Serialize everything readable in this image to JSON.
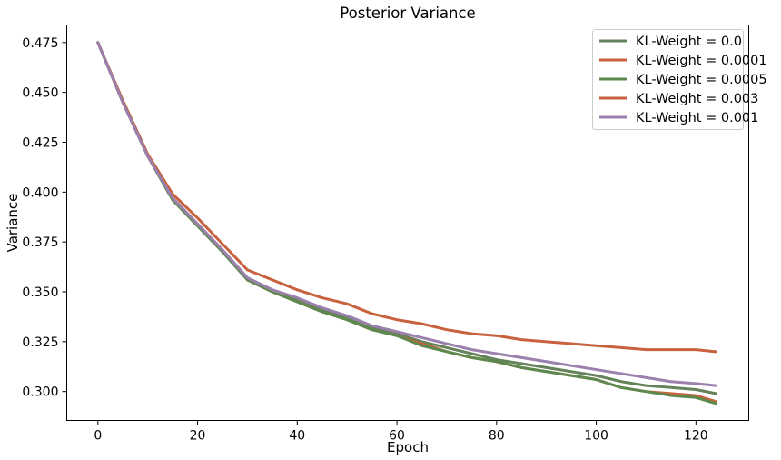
{
  "chart_data": {
    "type": "line",
    "title": "Posterior Variance",
    "xlabel": "Epoch",
    "ylabel": "Variance",
    "xlim": [
      -6.25,
      130.6
    ],
    "ylim": [
      0.2855,
      0.4838
    ],
    "xticks": [
      0,
      20,
      40,
      60,
      80,
      100,
      120
    ],
    "xtick_labels": [
      "0",
      "20",
      "40",
      "60",
      "80",
      "100",
      "120"
    ],
    "yticks": [
      0.3,
      0.325,
      0.35,
      0.375,
      0.4,
      0.425,
      0.45,
      0.475
    ],
    "ytick_labels": [
      "0.300",
      "0.325",
      "0.350",
      "0.375",
      "0.400",
      "0.425",
      "0.450",
      "0.475"
    ],
    "grid": false,
    "legend_position": "top-right",
    "x": [
      0,
      5,
      10,
      15,
      20,
      25,
      30,
      35,
      40,
      45,
      50,
      55,
      60,
      65,
      70,
      75,
      80,
      85,
      90,
      95,
      100,
      105,
      110,
      115,
      120,
      124
    ],
    "series": [
      {
        "name": "KL-Weight = 0.0",
        "color": "#65835b",
        "values": [
          0.475,
          0.445,
          0.418,
          0.397,
          0.384,
          0.371,
          0.357,
          0.351,
          0.346,
          0.341,
          0.337,
          0.332,
          0.329,
          0.325,
          0.322,
          0.319,
          0.316,
          0.314,
          0.312,
          0.31,
          0.308,
          0.305,
          0.303,
          0.302,
          0.301,
          0.299
        ]
      },
      {
        "name": "KL-Weight = 0.0001",
        "color": "#c8613e",
        "values": [
          0.475,
          0.445,
          0.418,
          0.397,
          0.384,
          0.371,
          0.356,
          0.35,
          0.345,
          0.34,
          0.336,
          0.331,
          0.328,
          0.324,
          0.32,
          0.317,
          0.315,
          0.312,
          0.31,
          0.308,
          0.306,
          0.302,
          0.3,
          0.299,
          0.298,
          0.295
        ]
      },
      {
        "name": "KL-Weight = 0.0005",
        "color": "#5c8a4e",
        "values": [
          0.475,
          0.445,
          0.418,
          0.396,
          0.383,
          0.37,
          0.356,
          0.35,
          0.345,
          0.34,
          0.336,
          0.331,
          0.328,
          0.323,
          0.32,
          0.317,
          0.315,
          0.312,
          0.31,
          0.308,
          0.306,
          0.302,
          0.3,
          0.298,
          0.297,
          0.294
        ]
      },
      {
        "name": "KL-Weight = 0.003",
        "color": "#c8613e",
        "values": [
          0.475,
          0.446,
          0.419,
          0.399,
          0.387,
          0.374,
          0.361,
          0.356,
          0.351,
          0.347,
          0.344,
          0.339,
          0.336,
          0.334,
          0.331,
          0.329,
          0.328,
          0.326,
          0.325,
          0.324,
          0.323,
          0.322,
          0.321,
          0.321,
          0.321,
          0.32
        ]
      },
      {
        "name": "KL-Weight = 0.001",
        "color": "#9b80ae",
        "values": [
          0.475,
          0.445,
          0.418,
          0.397,
          0.384,
          0.371,
          0.357,
          0.351,
          0.347,
          0.342,
          0.338,
          0.333,
          0.33,
          0.327,
          0.324,
          0.321,
          0.319,
          0.317,
          0.315,
          0.313,
          0.311,
          0.309,
          0.307,
          0.305,
          0.304,
          0.303
        ]
      }
    ]
  }
}
